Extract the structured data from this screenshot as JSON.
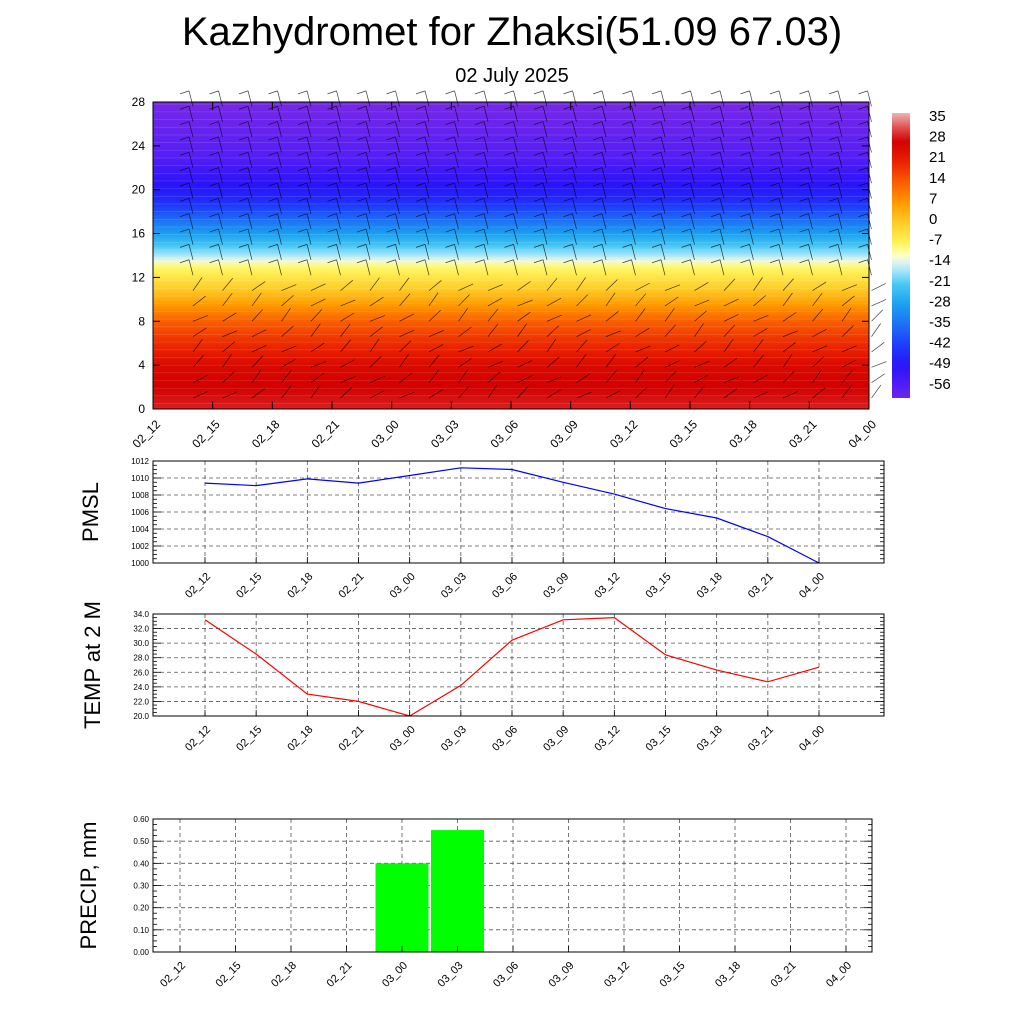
{
  "title": "Kazhydromet for Zhaksi(51.09 67.03)",
  "subtitle": "02 July 2025",
  "colors": {
    "pmsl_line": "#0000ff",
    "temp_line": "#ff0000",
    "precip_bar": "#00ff00",
    "grid": "#555555"
  },
  "chart_data": [
    {
      "type": "heatmap",
      "name_hint": "temperature-cross-section-with-wind-barbs",
      "x_ticks": [
        "02_12",
        "02_15",
        "02_18",
        "02_21",
        "03_00",
        "03_03",
        "03_06",
        "03_09",
        "03_12",
        "03_15",
        "03_18",
        "03_21",
        "04_00"
      ],
      "y_ticks": [
        "0",
        "4",
        "8",
        "12",
        "16",
        "20",
        "24",
        "28"
      ],
      "ylim": [
        0,
        28
      ],
      "colorbar": {
        "labels": [
          "35",
          "28",
          "21",
          "14",
          "7",
          "0",
          "-7",
          "-14",
          "-21",
          "-28",
          "-35",
          "-42",
          "-49",
          "-56"
        ],
        "range": [
          -60,
          38
        ]
      },
      "temperature_profile": [
        {
          "y": 0,
          "value": 30
        },
        {
          "y": 4,
          "value": 26
        },
        {
          "y": 8,
          "value": 14
        },
        {
          "y": 11,
          "value": 0
        },
        {
          "y": 13,
          "value": -8
        },
        {
          "y": 14,
          "value": -16
        },
        {
          "y": 16,
          "value": -28
        },
        {
          "y": 19,
          "value": -45
        },
        {
          "y": 23,
          "value": -56
        },
        {
          "y": 28,
          "value": -62
        }
      ],
      "grid": false
    },
    {
      "type": "line",
      "ylabel": "PMSL",
      "categories": [
        "02_12",
        "02_15",
        "02_18",
        "02_21",
        "03_00",
        "03_03",
        "03_06",
        "03_09",
        "03_12",
        "03_15",
        "03_18",
        "03_21",
        "04_00"
      ],
      "values": [
        1009.4,
        1009.1,
        1009.9,
        1009.4,
        1010.3,
        1011.2,
        1011.0,
        1009.5,
        1008.1,
        1006.4,
        1005.3,
        1003.1,
        1000.0
      ],
      "y_ticks": [
        "1000",
        "1002",
        "1004",
        "1006",
        "1008",
        "1010",
        "1012"
      ],
      "ylim": [
        1000,
        1012
      ],
      "grid": true
    },
    {
      "type": "line",
      "ylabel": "TEMP at 2 M",
      "categories": [
        "02_12",
        "02_15",
        "02_18",
        "02_21",
        "03_00",
        "03_03",
        "03_06",
        "03_09",
        "03_12",
        "03_15",
        "03_18",
        "03_21",
        "04_00"
      ],
      "values": [
        33.2,
        28.5,
        23.0,
        22.0,
        20.0,
        24.2,
        30.4,
        33.2,
        33.5,
        28.4,
        26.3,
        24.7,
        26.7
      ],
      "y_ticks": [
        "20.0",
        "22.0",
        "24.0",
        "26.0",
        "28.0",
        "30.0",
        "32.0",
        "34.0"
      ],
      "ylim": [
        20,
        34
      ],
      "grid": true
    },
    {
      "type": "bar",
      "ylabel": "PRECIP, mm",
      "categories": [
        "02_12",
        "02_15",
        "02_18",
        "02_21",
        "03_00",
        "03_03",
        "03_06",
        "03_09",
        "03_12",
        "03_15",
        "03_18",
        "03_21",
        "04_00"
      ],
      "values": [
        0,
        0,
        0,
        0,
        0.4,
        0.55,
        0,
        0,
        0,
        0,
        0,
        0,
        0
      ],
      "y_ticks": [
        "0.00",
        "0.10",
        "0.20",
        "0.30",
        "0.40",
        "0.50",
        "0.60"
      ],
      "ylim": [
        0,
        0.6
      ],
      "grid": true
    }
  ]
}
